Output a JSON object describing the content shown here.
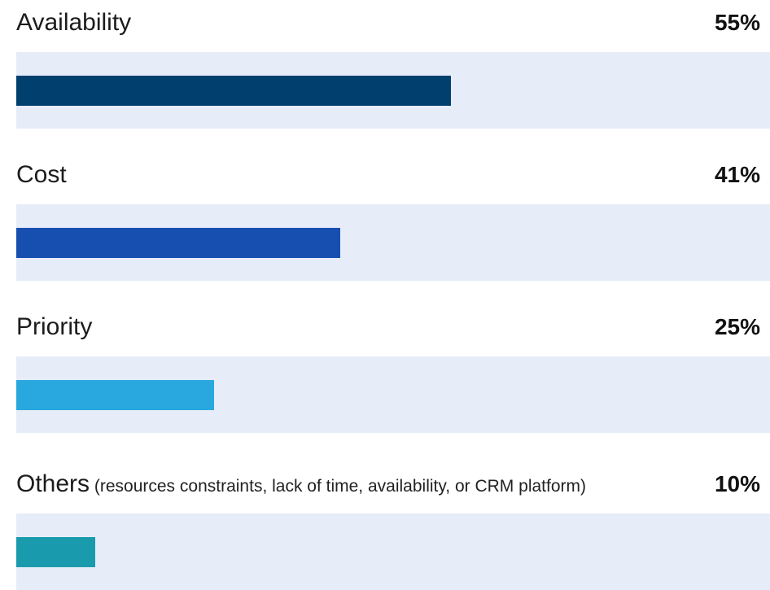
{
  "chart_data": {
    "type": "bar",
    "orientation": "horizontal",
    "categories": [
      "Availability",
      "Cost",
      "Priority",
      "Others"
    ],
    "category_notes": [
      "",
      "",
      "",
      "(resources constraints, lack of time, availability, or CRM platform)"
    ],
    "values": [
      55,
      41,
      25,
      10
    ],
    "value_labels": [
      "55%",
      "41%",
      "25%",
      "10%"
    ],
    "bar_colors": [
      "#003f6e",
      "#174fb0",
      "#29a8e0",
      "#1a9bad"
    ],
    "track_color": "#e6ecf8",
    "xlim": [
      0,
      100
    ],
    "title": "",
    "xlabel": "",
    "ylabel": "",
    "grid": false,
    "legend": "none"
  }
}
